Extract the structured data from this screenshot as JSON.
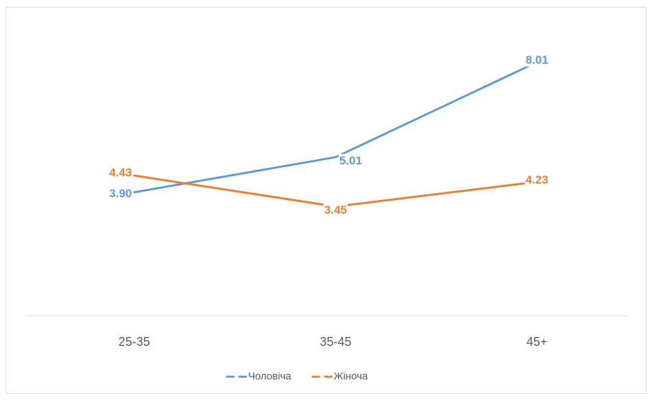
{
  "chart_data": {
    "type": "line",
    "categories": [
      "25-35",
      "35-45",
      "45+"
    ],
    "series": [
      {
        "name": "Чоловіча",
        "color": "#5b9bd5",
        "values": [
          3.9,
          5.01,
          8.01
        ],
        "value_labels": [
          "3.90",
          "5.01",
          "8.01"
        ]
      },
      {
        "name": "Жіноча",
        "color": "#ed7d31",
        "values": [
          4.43,
          3.45,
          4.23
        ],
        "value_labels": [
          "4.43",
          "3.45",
          "4.23"
        ]
      }
    ],
    "ylim": [
      0,
      9
    ],
    "legend": "bottom"
  }
}
